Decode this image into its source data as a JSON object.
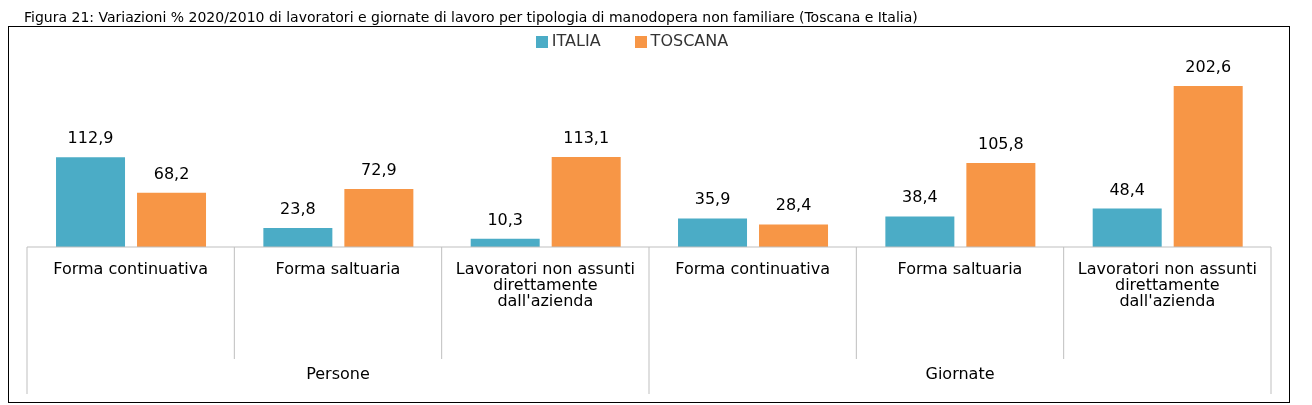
{
  "chart_data": {
    "type": "bar",
    "title": "Figura 21: Variazioni % 2020/2010 di lavoratori e giornate di lavoro per tipologia di manodopera non familiare (Toscana e Italia)",
    "categories": [
      "Forma continuativa",
      "Forma saltuaria",
      "Lavoratori non assunti direttamente dall'azienda",
      "Forma continuativa",
      "Forma saltuaria",
      "Lavoratori non assunti direttamente dall'azienda"
    ],
    "series": [
      {
        "name": "ITALIA",
        "color": "#4bacc6",
        "values": [
          112.9,
          23.8,
          10.3,
          35.9,
          38.4,
          48.4
        ],
        "value_labels": [
          "112,9",
          "23,8",
          "10,3",
          "35,9",
          "38,4",
          "48,4"
        ]
      },
      {
        "name": "TOSCANA",
        "color": "#f79646",
        "values": [
          68.2,
          72.9,
          113.1,
          28.4,
          105.8,
          202.6
        ],
        "value_labels": [
          "68,2",
          "72,9",
          "113,1",
          "28,4",
          "105,8",
          "202,6"
        ]
      }
    ],
    "annotations": [
      "Persone",
      "Giornate"
    ],
    "legend": "top"
  }
}
